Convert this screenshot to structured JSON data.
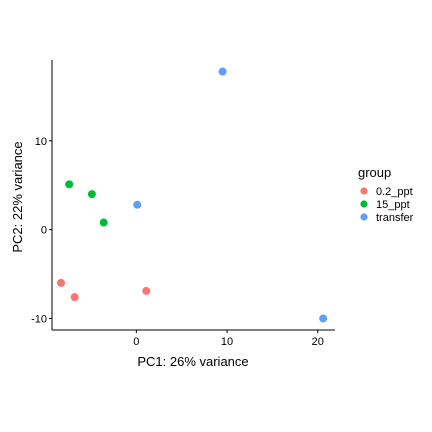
{
  "chart_data": {
    "type": "scatter",
    "xlabel": "PC1: 26% variance",
    "ylabel": "PC2: 22% variance",
    "xlim": [
      -9.3,
      21.9
    ],
    "ylim": [
      -11.3,
      19.1
    ],
    "x_ticks": [
      0,
      10,
      20
    ],
    "y_ticks": [
      -10,
      0,
      10
    ],
    "legend": {
      "title": "group",
      "position": "right"
    },
    "grid": false,
    "series": [
      {
        "name": "0.2_ppt",
        "color": "#F8766D",
        "points": [
          {
            "x": -8.3,
            "y": -6.0
          },
          {
            "x": -6.8,
            "y": -7.6
          },
          {
            "x": 1.1,
            "y": -6.9
          }
        ]
      },
      {
        "name": "15_ppt",
        "color": "#00BA38",
        "points": [
          {
            "x": -7.4,
            "y": 5.1
          },
          {
            "x": -4.9,
            "y": 4.0
          },
          {
            "x": -3.6,
            "y": 0.8
          }
        ]
      },
      {
        "name": "transfer",
        "color": "#619CFF",
        "points": [
          {
            "x": 0.1,
            "y": 2.8
          },
          {
            "x": 9.5,
            "y": 17.8
          },
          {
            "x": 20.6,
            "y": -10.0
          }
        ]
      }
    ]
  }
}
